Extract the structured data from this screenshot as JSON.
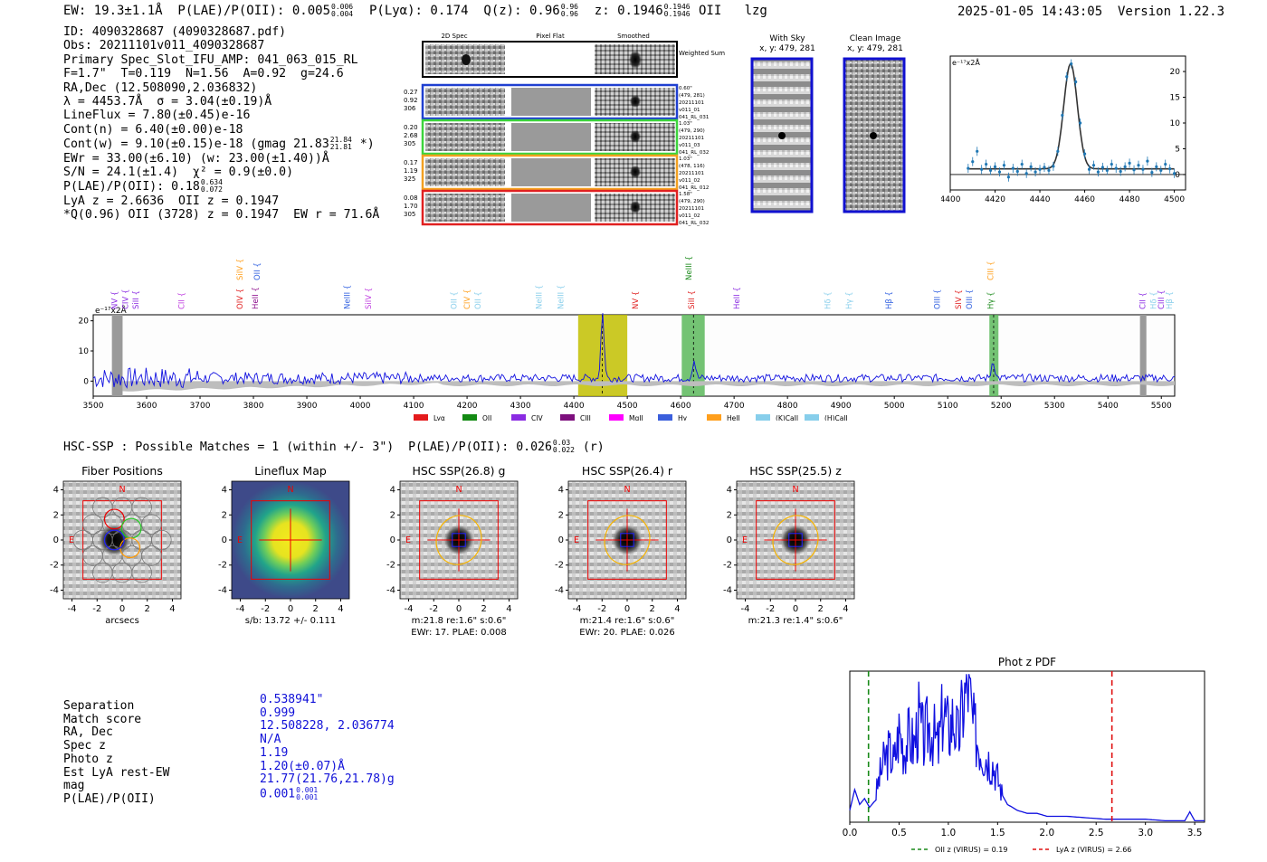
{
  "header": {
    "summary": "EW: 19.3±1.1Å  P(LAE)/P(OII): 0.005",
    "plae_sup": "0.006",
    "plae_sub": "0.004",
    "plya": "  P(Lyα): 0.174  Q(z): 0.96",
    "qz_sup": "0.96",
    "qz_sub": "0.96",
    "z_text": "  z: 0.1946",
    "z_sup": "0.1946",
    "z_sub": "0.1946",
    "line_tail": " OII   lzg",
    "datetime": "2025-01-05 14:43:05  Version 1.22.3"
  },
  "info": {
    "id": "ID: 4090328687 (4090328687.pdf)",
    "obs": "Obs: 20211101v011_4090328687",
    "primary": "Primary Spec_Slot_IFU_AMP: 041_063_015_RL",
    "fit": "F=1.7\"  T=0.119  N=1.56  A=0.92  g=24.6",
    "radec": "RA,Dec (12.508090,2.036832)",
    "lambda": "λ = 4453.7Å  σ = 3.04(±0.19)Å",
    "lineflux": "LineFlux = 7.80(±0.45)e-16",
    "contn": "Cont(n) = 6.40(±0.00)e-18",
    "contw": "Cont(w) = 9.10(±0.15)e-18 (gmag 21.83",
    "contw_sup": "21.84",
    "contw_sub": "21.81",
    "contw_tail": " *)",
    "ewr": "EWr = 33.00(±6.10) (w: 23.00(±1.40))Å",
    "sn": "S/N = 24.1(±1.4)  χ² = 0.9(±0.0)",
    "plae": "P(LAE)/P(OII): 0.18",
    "plae_sup": "0.634",
    "plae_sub": "0.072",
    "lya": "LyA z = 2.6636  OII z = 0.1947",
    "q": "*Q(0.96) OII (3728) z = 0.1947  EW r = 71.6Å"
  },
  "cutouts": {
    "col_labels": [
      "2D Spec",
      "Pixel Flat",
      "Smoothed"
    ],
    "weighted": "Weighted Sum",
    "rows": [
      {
        "stats": [
          "0.27",
          "0.92",
          "306"
        ],
        "meta": [
          "0.60\"",
          "(479, 281)",
          "20211101",
          "v011_01",
          "041_RL_031"
        ],
        "color": "#1f3fd0"
      },
      {
        "stats": [
          "0.20",
          "2.68",
          "305"
        ],
        "meta": [
          "1.03\"",
          "(479, 290)",
          "20211101",
          "v011_03",
          "041_RL_032"
        ],
        "color": "#3cd43c"
      },
      {
        "stats": [
          "0.17",
          "1.19",
          "325"
        ],
        "meta": [
          "1.03\"",
          "(478, 116)",
          "20211101",
          "v011_02",
          "041_RL_012"
        ],
        "color": "#f2a020"
      },
      {
        "stats": [
          "0.08",
          "1.70",
          "305"
        ],
        "meta": [
          "1.58\"",
          "(479, 290)",
          "20211101",
          "v011_02",
          "041_RL_032"
        ],
        "color": "#e02020"
      }
    ],
    "with_sky": "With Sky",
    "with_sky_coords": "x, y: 479, 281",
    "clean": "Clean Image",
    "clean_coords": "x, y: 479, 281"
  },
  "zoom_chart": {
    "type": "scatter",
    "units": "e⁻¹⁷x2Å",
    "xlim": [
      4400,
      4505
    ],
    "ylim": [
      -3,
      23
    ],
    "xticks": [
      "4400",
      "4420",
      "4440",
      "4460",
      "4480",
      "4500"
    ],
    "yticks": [
      "0",
      "5",
      "10",
      "15",
      "20"
    ],
    "x": [
      4408,
      4410,
      4412,
      4414,
      4416,
      4418,
      4420,
      4422,
      4424,
      4426,
      4428,
      4430,
      4432,
      4434,
      4436,
      4438,
      4440,
      4442,
      4444,
      4446,
      4448,
      4450,
      4452,
      4454,
      4456,
      4458,
      4460,
      4462,
      4464,
      4466,
      4468,
      4470,
      4472,
      4474,
      4476,
      4478,
      4480,
      4482,
      4484,
      4486,
      4488,
      4490,
      4492,
      4494,
      4496,
      4498,
      4500
    ],
    "y": [
      1.2,
      2.5,
      4.5,
      1.0,
      2.0,
      0.8,
      1.5,
      0.5,
      1.8,
      -0.5,
      1.2,
      0.6,
      2.0,
      0.2,
      1.5,
      0.5,
      1.0,
      1.4,
      0.8,
      1.6,
      4.5,
      11.5,
      19.0,
      21.5,
      18.0,
      10.0,
      4.0,
      1.0,
      1.8,
      0.5,
      1.4,
      0.8,
      2.0,
      1.2,
      0.6,
      1.5,
      2.2,
      0.9,
      1.8,
      1.0,
      2.6,
      0.4,
      1.5,
      0.8,
      2.0,
      1.1,
      0.2
    ],
    "fit_peak": 21.5,
    "fit_center": 4453.7,
    "fit_sigma": 3.04,
    "fit_cont": 1.1
  },
  "full_chart": {
    "type": "line",
    "units": "e⁻¹⁷x2Å",
    "xlim": [
      3500,
      5525
    ],
    "ylim": [
      -5,
      22
    ],
    "xticks": [
      "3500",
      "3600",
      "3700",
      "3800",
      "3900",
      "4000",
      "4100",
      "4200",
      "4300",
      "4400",
      "4500",
      "4600",
      "4700",
      "4800",
      "4900",
      "5000",
      "5100",
      "5200",
      "5300",
      "5400",
      "5500"
    ],
    "yticks": [
      "0",
      "10",
      "20"
    ],
    "peaks": [
      {
        "x": 4453.7,
        "height": 21.5
      },
      {
        "x": 4625,
        "height": 6
      },
      {
        "x": 5185,
        "height": 6
      }
    ],
    "highlights": [
      {
        "from": 4408,
        "to": 4500,
        "color": "#c2c000",
        "dash_x": 4453
      },
      {
        "from": 4602,
        "to": 4645,
        "color": "#5cb85c",
        "dash_x": 4624
      },
      {
        "from": 5178,
        "to": 5195,
        "color": "#5cb85c",
        "dash_x": 5186
      }
    ],
    "lines": [
      {
        "label": "NV",
        "x": 3545,
        "color": "#8a2be2",
        "row": 2
      },
      {
        "label": "CIV",
        "x": 3565,
        "color": "#8a2be2",
        "row": 2
      },
      {
        "label": "SiII",
        "x": 3585,
        "color": "#8a2be2",
        "row": 2
      },
      {
        "label": "CII",
        "x": 3670,
        "color": "#c040e0",
        "row": 2
      },
      {
        "label": "SiIV",
        "x": 3780,
        "color": "#ff9f1c",
        "row": 0
      },
      {
        "label": "OIV",
        "x": 3780,
        "color": "#e02020",
        "row": 2
      },
      {
        "label": "OII",
        "x": 3812,
        "color": "#3060e0",
        "row": 0
      },
      {
        "label": "HeII",
        "x": 3808,
        "color": "#8b0a8b",
        "row": 2
      },
      {
        "label": "NeIII",
        "x": 3980,
        "color": "#3060e0",
        "row": 2
      },
      {
        "label": "SiIV",
        "x": 4020,
        "color": "#c040e0",
        "row": 2
      },
      {
        "label": "OII",
        "x": 4180,
        "color": "#87ceeb",
        "row": 2
      },
      {
        "label": "CIV",
        "x": 4205,
        "color": "#ff9f1c",
        "row": 2
      },
      {
        "label": "OII",
        "x": 4225,
        "color": "#87ceeb",
        "row": 2
      },
      {
        "label": "NeIII",
        "x": 4340,
        "color": "#87ceeb",
        "row": 2
      },
      {
        "label": "NeIII",
        "x": 4380,
        "color": "#87ceeb",
        "row": 2
      },
      {
        "label": "NV",
        "x": 4520,
        "color": "#e02020",
        "row": 2
      },
      {
        "label": "NeIII",
        "x": 4620,
        "color": "#1a8a1a",
        "row": 0
      },
      {
        "label": "SiII",
        "x": 4625,
        "color": "#e02020",
        "row": 2
      },
      {
        "label": "HeII",
        "x": 4710,
        "color": "#8a2be2",
        "row": 2
      },
      {
        "label": "Hδ",
        "x": 4880,
        "color": "#87ceeb",
        "row": 2
      },
      {
        "label": "Hγ",
        "x": 4920,
        "color": "#87ceeb",
        "row": 2
      },
      {
        "label": "Hβ",
        "x": 4995,
        "color": "#3060e0",
        "row": 2
      },
      {
        "label": "OIII",
        "x": 5085,
        "color": "#3060e0",
        "row": 2
      },
      {
        "label": "SIV",
        "x": 5125,
        "color": "#e02020",
        "row": 2
      },
      {
        "label": "OIII",
        "x": 5145,
        "color": "#3060e0",
        "row": 2
      },
      {
        "label": "CIII",
        "x": 5185,
        "color": "#ff9f1c",
        "row": 0
      },
      {
        "label": "Hγ",
        "x": 5185,
        "color": "#1a8a1a",
        "row": 2
      },
      {
        "label": "CII",
        "x": 5470,
        "color": "#8a2be2",
        "row": 2
      },
      {
        "label": "Hδ",
        "x": 5490,
        "color": "#87ceeb",
        "row": 2
      },
      {
        "label": "CIII",
        "x": 5505,
        "color": "#8a2be2",
        "row": 2
      },
      {
        "label": "Hβ",
        "x": 5520,
        "color": "#87ceeb",
        "row": 2
      }
    ],
    "legend": [
      {
        "label": "Lyα",
        "color": "#e41a1c"
      },
      {
        "label": "OII",
        "color": "#138a13"
      },
      {
        "label": "CIV",
        "color": "#8a2be2"
      },
      {
        "label": "CIII",
        "color": "#7d0f7d"
      },
      {
        "label": "MgII",
        "color": "#ff00ff"
      },
      {
        "label": "Hγ",
        "color": "#3b5fdc"
      },
      {
        "label": "HeII",
        "color": "#ff9f1c"
      },
      {
        "label": "(K)CaII",
        "color": "#87ceeb"
      },
      {
        "label": "(H)CaII",
        "color": "#87ceeb"
      }
    ]
  },
  "hsc": {
    "line": "HSC-SSP : Possible Matches = 1 (within +/- 3\")  P(LAE)/P(OII): 0.026",
    "sup": "0.03",
    "sub": "0.022",
    "band": " (r)"
  },
  "stamps": [
    {
      "title": "Fiber Positions",
      "caption1": "arcsecs",
      "caption2": "",
      "kind": "fiber"
    },
    {
      "title": "Lineflux Map",
      "caption1": "s/b: 13.72 +/- 0.111",
      "caption2": "",
      "kind": "lineflux"
    },
    {
      "title": "HSC SSP(26.8) g",
      "caption1": "m:21.8  re:1.6\"  s:0.6\"",
      "caption2": "EWr: 17. PLAE: 0.008",
      "kind": "hsc"
    },
    {
      "title": "HSC SSP(26.4) r",
      "caption1": "m:21.4  re:1.6\"  s:0.6\"",
      "caption2": "EWr: 20. PLAE: 0.026",
      "kind": "hsc"
    },
    {
      "title": "HSC SSP(25.5) z",
      "caption1": "m:21.3  re:1.4\"  s:0.6\"",
      "caption2": "",
      "kind": "hsc"
    }
  ],
  "stamp_axes": {
    "ticks": [
      "-4",
      "-2",
      "0",
      "2",
      "4"
    ],
    "north": "N",
    "east": "E"
  },
  "match": {
    "labels": [
      "Separation",
      "Match score",
      "RA, Dec",
      "Spec z",
      "Photo z",
      "Est LyA rest-EW",
      "mag",
      "P(LAE)/P(OII)"
    ],
    "values": [
      "0.538941\"",
      "0.999",
      "12.508228, 2.036774",
      "N/A",
      "1.19",
      "1.20(±0.07)Å",
      "21.77(21.76,21.78)g",
      "0.001"
    ],
    "plae_sup": "0.001",
    "plae_sub": "0.001"
  },
  "pdf_chart": {
    "type": "line",
    "title": "Phot z PDF",
    "xlim": [
      0,
      3.6
    ],
    "xticks": [
      "0.0",
      "0.5",
      "1.0",
      "1.5",
      "2.0",
      "2.5",
      "3.0",
      "3.5"
    ],
    "oii_z": 0.19,
    "lya_z": 2.66,
    "legend_oii": "OII z (VIRUS) = 0.19",
    "legend_lya": "LyA z (VIRUS) = 2.66",
    "x": [
      0.0,
      0.05,
      0.1,
      0.15,
      0.2,
      0.25,
      0.3,
      0.35,
      0.4,
      0.45,
      0.5,
      0.55,
      0.6,
      0.65,
      0.7,
      0.75,
      0.8,
      0.85,
      0.9,
      0.95,
      1.0,
      1.05,
      1.1,
      1.15,
      1.2,
      1.25,
      1.3,
      1.35,
      1.4,
      1.45,
      1.5,
      1.55,
      1.6,
      1.7,
      1.8,
      1.9,
      2.0,
      2.2,
      2.4,
      2.6,
      2.8,
      3.0,
      3.2,
      3.4,
      3.45,
      3.5,
      3.6
    ],
    "y": [
      0.08,
      0.22,
      0.12,
      0.16,
      0.1,
      0.14,
      0.3,
      0.42,
      0.48,
      0.4,
      0.62,
      0.5,
      0.58,
      0.52,
      0.7,
      0.55,
      0.66,
      0.6,
      0.5,
      0.78,
      0.62,
      0.72,
      0.56,
      0.8,
      0.95,
      0.65,
      0.55,
      0.48,
      0.44,
      0.4,
      0.3,
      0.18,
      0.12,
      0.08,
      0.06,
      0.06,
      0.04,
      0.04,
      0.03,
      0.02,
      0.02,
      0.02,
      0.01,
      0.01,
      0.07,
      0.01,
      0.01
    ]
  }
}
